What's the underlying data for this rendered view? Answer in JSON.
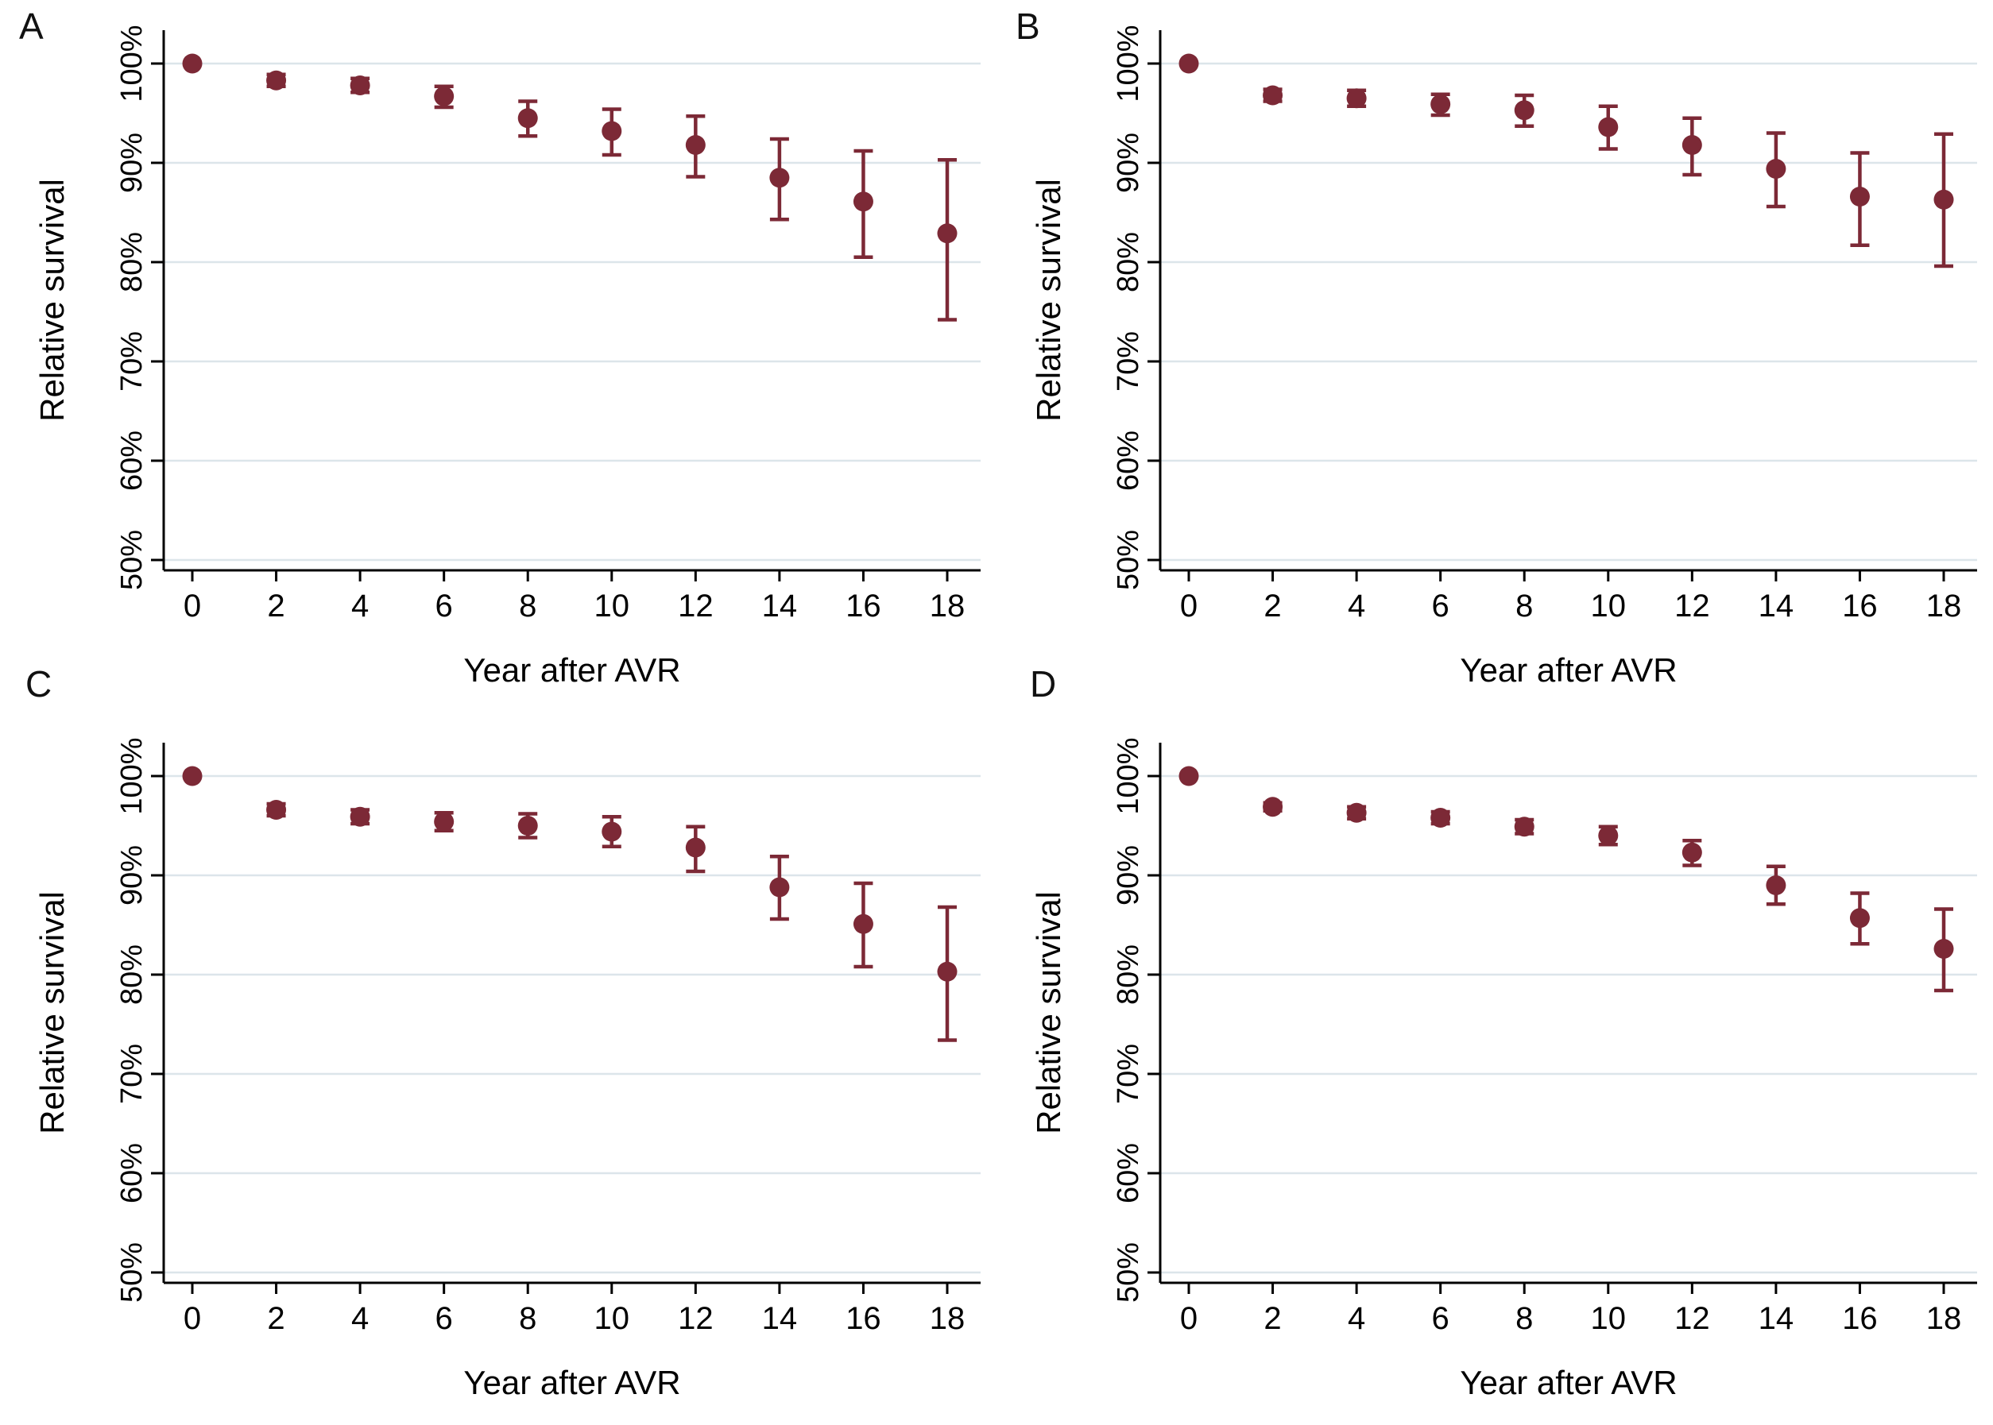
{
  "style": {
    "point_color": "#7c2936",
    "grid_color": "#dce5ea",
    "axis_color": "#000000",
    "text_color": "#000000",
    "background": "#ffffff"
  },
  "chart_data": [
    {
      "type": "scatter",
      "panel_label": "A",
      "title": "",
      "xlabel": "Year after AVR",
      "ylabel": "Relative survival",
      "x": [
        0,
        2,
        4,
        6,
        8,
        10,
        12,
        14,
        16,
        18
      ],
      "y": [
        100,
        98.3,
        97.8,
        96.7,
        94.5,
        93.2,
        91.8,
        88.5,
        86.1,
        82.9
      ],
      "ci_low": [
        100,
        97.7,
        97.1,
        95.6,
        92.7,
        90.8,
        88.6,
        84.3,
        80.5,
        74.2
      ],
      "ci_high": [
        100,
        98.9,
        98.5,
        97.7,
        96.2,
        95.4,
        94.7,
        92.4,
        91.2,
        90.3
      ],
      "xticks": [
        0,
        2,
        4,
        6,
        8,
        10,
        12,
        14,
        16,
        18
      ],
      "xtick_labels": [
        "0",
        "2",
        "4",
        "6",
        "8",
        "10",
        "12",
        "14",
        "16",
        "18"
      ],
      "yticks": [
        50,
        60,
        70,
        80,
        90,
        100
      ],
      "ytick_labels": [
        "50%",
        "60%",
        "70%",
        "80%",
        "90%",
        "100%"
      ],
      "ylim": [
        48,
        102
      ],
      "grid": true,
      "legend": "none"
    },
    {
      "type": "scatter",
      "panel_label": "B",
      "title": "",
      "xlabel": "Year after AVR",
      "ylabel": "Relative survival",
      "x": [
        0,
        2,
        4,
        6,
        8,
        10,
        12,
        14,
        16,
        18
      ],
      "y": [
        100,
        96.8,
        96.5,
        95.9,
        95.3,
        93.6,
        91.8,
        89.4,
        86.6,
        86.3
      ],
      "ci_low": [
        100,
        96.2,
        95.7,
        94.8,
        93.7,
        91.4,
        88.8,
        85.6,
        81.7,
        79.6
      ],
      "ci_high": [
        100,
        97.4,
        97.3,
        96.9,
        96.8,
        95.7,
        94.5,
        93.0,
        91.0,
        92.9
      ],
      "xticks": [
        0,
        2,
        4,
        6,
        8,
        10,
        12,
        14,
        16,
        18
      ],
      "xtick_labels": [
        "0",
        "2",
        "4",
        "6",
        "8",
        "10",
        "12",
        "14",
        "16",
        "18"
      ],
      "yticks": [
        50,
        60,
        70,
        80,
        90,
        100
      ],
      "ytick_labels": [
        "50%",
        "60%",
        "70%",
        "80%",
        "90%",
        "100%"
      ],
      "ylim": [
        48,
        102
      ],
      "grid": true,
      "legend": "none"
    },
    {
      "type": "scatter",
      "panel_label": "C",
      "title": "",
      "xlabel": "Year after AVR",
      "ylabel": "Relative survival",
      "x": [
        0,
        2,
        4,
        6,
        8,
        10,
        12,
        14,
        16,
        18
      ],
      "y": [
        100,
        96.6,
        95.9,
        95.4,
        95.0,
        94.4,
        92.8,
        88.8,
        85.1,
        80.3
      ],
      "ci_low": [
        100,
        96.0,
        95.2,
        94.5,
        93.8,
        92.9,
        90.4,
        85.6,
        80.8,
        73.4
      ],
      "ci_high": [
        100,
        97.2,
        96.6,
        96.3,
        96.2,
        95.9,
        94.9,
        91.9,
        89.2,
        86.8
      ],
      "xticks": [
        0,
        2,
        4,
        6,
        8,
        10,
        12,
        14,
        16,
        18
      ],
      "xtick_labels": [
        "0",
        "2",
        "4",
        "6",
        "8",
        "10",
        "12",
        "14",
        "16",
        "18"
      ],
      "yticks": [
        50,
        60,
        70,
        80,
        90,
        100
      ],
      "ytick_labels": [
        "50%",
        "60%",
        "70%",
        "80%",
        "90%",
        "100%"
      ],
      "ylim": [
        48,
        102
      ],
      "grid": true,
      "legend": "none"
    },
    {
      "type": "scatter",
      "panel_label": "D",
      "title": "",
      "xlabel": "Year after AVR",
      "ylabel": "Relative survival",
      "x": [
        0,
        2,
        4,
        6,
        8,
        10,
        12,
        14,
        16,
        18
      ],
      "y": [
        100,
        96.9,
        96.3,
        95.8,
        94.9,
        94.0,
        92.3,
        89.0,
        85.7,
        82.6
      ],
      "ci_low": [
        100,
        96.5,
        95.7,
        95.2,
        94.2,
        93.1,
        91.0,
        87.1,
        83.1,
        78.4
      ],
      "ci_high": [
        100,
        97.3,
        96.9,
        96.4,
        95.6,
        94.9,
        93.5,
        90.9,
        88.2,
        86.6
      ],
      "xticks": [
        0,
        2,
        4,
        6,
        8,
        10,
        12,
        14,
        16,
        18
      ],
      "xtick_labels": [
        "0",
        "2",
        "4",
        "6",
        "8",
        "10",
        "12",
        "14",
        "16",
        "18"
      ],
      "yticks": [
        50,
        60,
        70,
        80,
        90,
        100
      ],
      "ytick_labels": [
        "50%",
        "60%",
        "70%",
        "80%",
        "90%",
        "100%"
      ],
      "ylim": [
        48,
        102
      ],
      "grid": true,
      "legend": "none"
    }
  ]
}
